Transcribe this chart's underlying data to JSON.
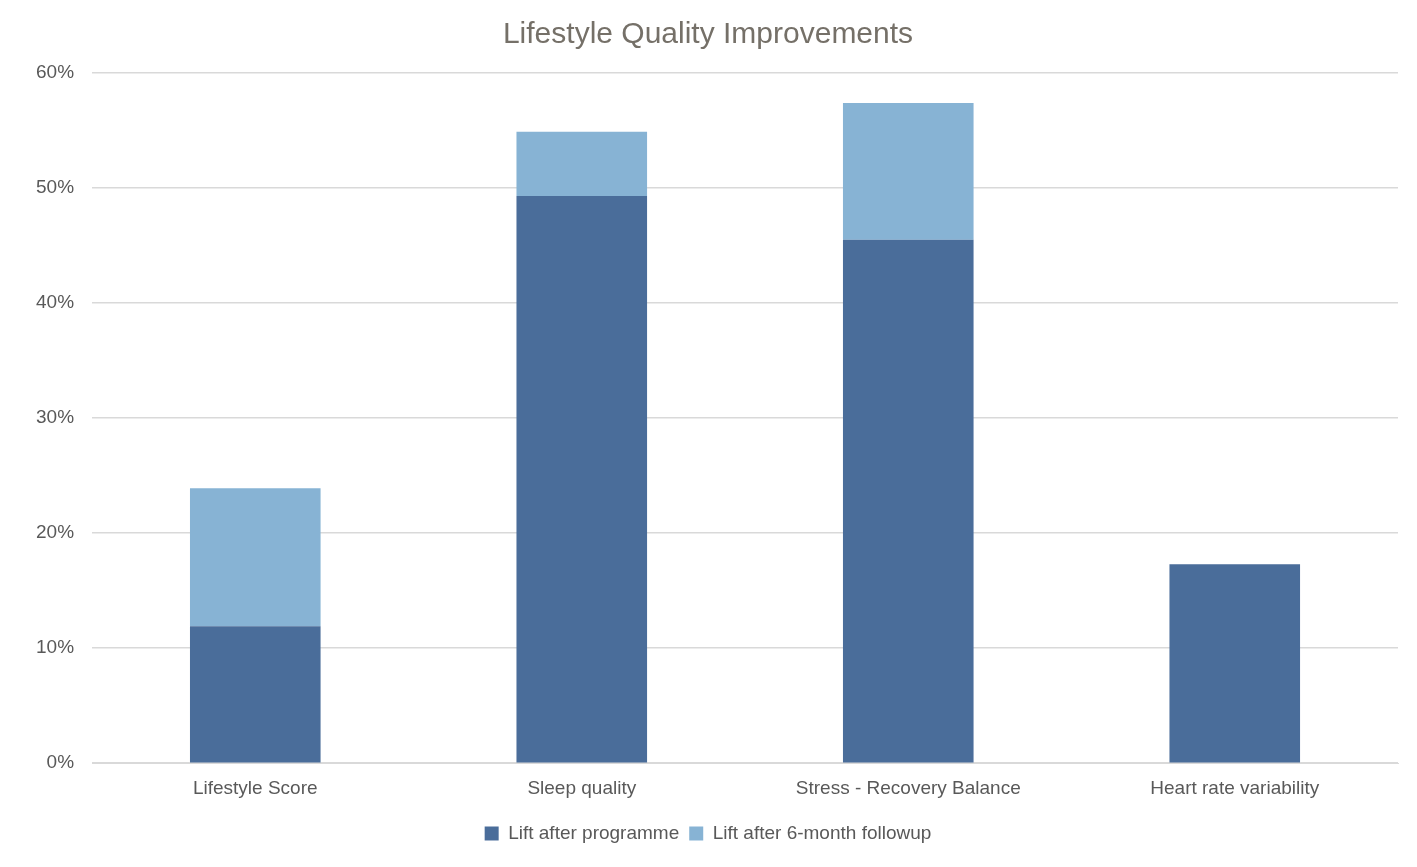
{
  "chart_data": {
    "type": "bar",
    "title": "Lifestyle Quality Improvements",
    "categories": [
      "Lifestyle Score",
      "Sleep quality",
      "Stress - Recovery Balance",
      "Heart rate variability"
    ],
    "series": [
      {
        "name": "Lift after programme",
        "color": "#4a6d9a",
        "values": [
          11.9,
          49.3,
          45.5,
          17.3
        ]
      },
      {
        "name": "Lift after 6-month followup",
        "color": "#87b3d4",
        "values": [
          12.0,
          5.6,
          11.9,
          0
        ]
      }
    ],
    "stacked": true,
    "ylim": [
      0,
      60
    ],
    "yticks": [
      {
        "value": 0,
        "label": "0%"
      },
      {
        "value": 10,
        "label": "10%"
      },
      {
        "value": 20,
        "label": "20%"
      },
      {
        "value": 30,
        "label": "30%"
      },
      {
        "value": 40,
        "label": "40%"
      },
      {
        "value": 50,
        "label": "50%"
      },
      {
        "value": 60,
        "label": "60%"
      }
    ],
    "grid": "y",
    "legend": "bottom"
  }
}
